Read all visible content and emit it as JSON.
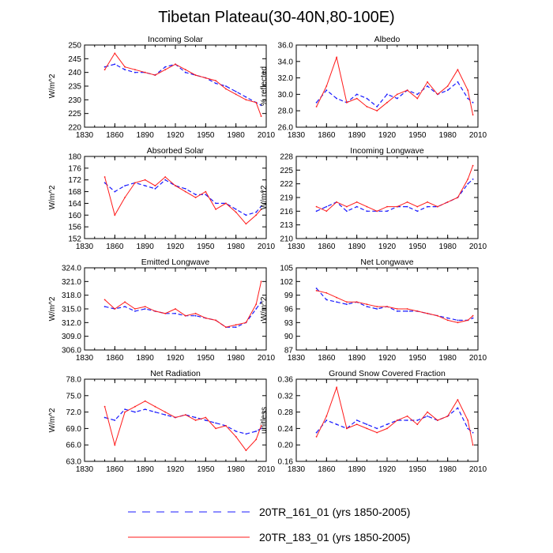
{
  "figure": {
    "title": "Tibetan Plateau(30-40N,80-100E)",
    "colors": {
      "series1": "#1a1aff",
      "series2": "#ff1a1a",
      "axis": "#000000"
    }
  },
  "chart_data": [
    {
      "type": "line",
      "title": "Incoming Solar",
      "xlabel": "",
      "ylabel": "W/m^2",
      "xlim": [
        1830,
        2010
      ],
      "xticks": [
        "1830",
        "1860",
        "1890",
        "1920",
        "1950",
        "1980",
        "2010"
      ],
      "ylim": [
        220,
        250
      ],
      "yticks": [
        "220",
        "225",
        "230",
        "235",
        "240",
        "245",
        "250"
      ],
      "x": [
        1850,
        1860,
        1870,
        1880,
        1890,
        1900,
        1910,
        1920,
        1930,
        1940,
        1950,
        1960,
        1970,
        1980,
        1990,
        2000,
        2005
      ],
      "series": [
        {
          "name": "20TR_161_01 (yrs 1850-2005)",
          "values": [
            242,
            243,
            241,
            240,
            240,
            239,
            242,
            243,
            240,
            239,
            238,
            236,
            235,
            233,
            231,
            229,
            228
          ]
        },
        {
          "name": "20TR_183_01 (yrs 1850-2005)",
          "values": [
            241,
            247,
            242,
            241,
            240,
            239,
            241,
            243,
            241,
            239,
            238,
            237,
            234,
            232,
            230,
            229,
            224
          ]
        }
      ]
    },
    {
      "type": "line",
      "title": "Albedo",
      "xlabel": "",
      "ylabel": "% reflected",
      "xlim": [
        1830,
        2010
      ],
      "xticks": [
        "1830",
        "1860",
        "1890",
        "1920",
        "1950",
        "1980",
        "2010"
      ],
      "ylim": [
        26,
        36
      ],
      "yticks": [
        "26.0",
        "28.0",
        "30.0",
        "32.0",
        "34.0",
        "36.0"
      ],
      "x": [
        1850,
        1860,
        1870,
        1880,
        1890,
        1900,
        1910,
        1920,
        1930,
        1940,
        1950,
        1960,
        1970,
        1980,
        1990,
        2000,
        2005
      ],
      "series": [
        {
          "name": "20TR_161_01 (yrs 1850-2005)",
          "values": [
            29.0,
            30.5,
            29.5,
            29.0,
            30.0,
            29.5,
            28.5,
            30.0,
            29.5,
            30.5,
            30.0,
            31.0,
            30.0,
            30.5,
            31.5,
            29.5,
            29.0
          ]
        },
        {
          "name": "20TR_183_01 (yrs 1850-2005)",
          "values": [
            28.5,
            31.0,
            34.5,
            29.0,
            29.5,
            28.5,
            28.0,
            29.0,
            30.0,
            30.5,
            29.5,
            31.5,
            30.0,
            31.0,
            33.0,
            30.5,
            27.5
          ]
        }
      ]
    },
    {
      "type": "line",
      "title": "Absorbed Solar",
      "xlabel": "",
      "ylabel": "W/m^2",
      "xlim": [
        1830,
        2010
      ],
      "xticks": [
        "1830",
        "1860",
        "1890",
        "1920",
        "1950",
        "1980",
        "2010"
      ],
      "ylim": [
        152,
        180
      ],
      "yticks": [
        "152",
        "156",
        "160",
        "164",
        "168",
        "172",
        "176",
        "180"
      ],
      "x": [
        1850,
        1860,
        1870,
        1880,
        1890,
        1900,
        1910,
        1920,
        1930,
        1940,
        1950,
        1960,
        1970,
        1980,
        1990,
        2000,
        2005
      ],
      "series": [
        {
          "name": "20TR_161_01 (yrs 1850-2005)",
          "values": [
            171,
            168,
            170,
            171,
            170,
            169,
            172,
            170,
            169,
            167,
            167,
            164,
            164,
            162,
            160,
            161,
            163
          ]
        },
        {
          "name": "20TR_183_01 (yrs 1850-2005)",
          "values": [
            173,
            160,
            166,
            171,
            172,
            170,
            173,
            170,
            168,
            166,
            168,
            162,
            164,
            161,
            157,
            160,
            162
          ]
        }
      ]
    },
    {
      "type": "line",
      "title": "Incoming Longwave",
      "xlabel": "",
      "ylabel": "W/m^2",
      "xlim": [
        1830,
        2010
      ],
      "xticks": [
        "1830",
        "1860",
        "1890",
        "1920",
        "1950",
        "1980",
        "2010"
      ],
      "ylim": [
        210,
        228
      ],
      "yticks": [
        "210",
        "213",
        "216",
        "219",
        "222",
        "225",
        "228"
      ],
      "x": [
        1850,
        1860,
        1870,
        1880,
        1890,
        1900,
        1910,
        1920,
        1930,
        1940,
        1950,
        1960,
        1970,
        1980,
        1990,
        2000,
        2005
      ],
      "series": [
        {
          "name": "20TR_161_01 (yrs 1850-2005)",
          "values": [
            216,
            217,
            218,
            216,
            217,
            216,
            216,
            216,
            217,
            217,
            216,
            217,
            217,
            218,
            219,
            222,
            223
          ]
        },
        {
          "name": "20TR_183_01 (yrs 1850-2005)",
          "values": [
            217,
            216,
            218,
            217,
            218,
            217,
            216,
            217,
            217,
            218,
            217,
            218,
            217,
            218,
            219,
            223,
            226
          ]
        }
      ]
    },
    {
      "type": "line",
      "title": "Emitted Longwave",
      "xlabel": "",
      "ylabel": "W/m^2",
      "xlim": [
        1830,
        2010
      ],
      "xticks": [
        "1830",
        "1860",
        "1890",
        "1920",
        "1950",
        "1980",
        "2010"
      ],
      "ylim": [
        306,
        324
      ],
      "yticks": [
        "306.0",
        "309.0",
        "312.0",
        "315.0",
        "318.0",
        "321.0",
        "324.0"
      ],
      "x": [
        1850,
        1860,
        1870,
        1880,
        1890,
        1900,
        1910,
        1920,
        1930,
        1940,
        1950,
        1960,
        1970,
        1980,
        1990,
        2000,
        2005
      ],
      "series": [
        {
          "name": "20TR_161_01 (yrs 1850-2005)",
          "values": [
            315.5,
            315.0,
            315.5,
            314.5,
            315.0,
            314.5,
            314.0,
            314.0,
            313.5,
            313.5,
            313.0,
            312.5,
            311.0,
            311.0,
            312.0,
            315.0,
            316.5
          ]
        },
        {
          "name": "20TR_183_01 (yrs 1850-2005)",
          "values": [
            317.0,
            315.0,
            316.5,
            315.0,
            315.5,
            314.5,
            314.0,
            315.0,
            313.5,
            314.0,
            313.0,
            312.5,
            311.0,
            311.5,
            312.0,
            316.0,
            321.0
          ]
        }
      ]
    },
    {
      "type": "line",
      "title": "Net Longwave",
      "xlabel": "",
      "ylabel": "W/m^2",
      "xlim": [
        1830,
        2010
      ],
      "xticks": [
        "1830",
        "1860",
        "1890",
        "1920",
        "1950",
        "1980",
        "2010"
      ],
      "ylim": [
        87,
        105
      ],
      "yticks": [
        "87",
        "90",
        "93",
        "96",
        "99",
        "102",
        "105"
      ],
      "x": [
        1850,
        1860,
        1870,
        1880,
        1890,
        1900,
        1910,
        1920,
        1930,
        1940,
        1950,
        1960,
        1970,
        1980,
        1990,
        2000,
        2005
      ],
      "series": [
        {
          "name": "20TR_161_01 (yrs 1850-2005)",
          "values": [
            100.5,
            98.0,
            97.5,
            97.0,
            97.5,
            96.5,
            96.0,
            96.5,
            95.5,
            95.5,
            95.5,
            95.0,
            94.5,
            94.0,
            93.5,
            93.5,
            94.0
          ]
        },
        {
          "name": "20TR_183_01 (yrs 1850-2005)",
          "values": [
            100.0,
            99.5,
            98.5,
            97.5,
            97.5,
            97.0,
            96.5,
            96.5,
            96.0,
            96.0,
            95.5,
            95.0,
            94.5,
            93.5,
            93.0,
            93.5,
            94.5
          ]
        }
      ]
    },
    {
      "type": "line",
      "title": "Net Radiation",
      "xlabel": "",
      "ylabel": "W/m^2",
      "xlim": [
        1830,
        2010
      ],
      "xticks": [
        "1830",
        "1860",
        "1890",
        "1920",
        "1950",
        "1980",
        "2010"
      ],
      "ylim": [
        63,
        78
      ],
      "yticks": [
        "63.0",
        "66.0",
        "69.0",
        "72.0",
        "75.0",
        "78.0"
      ],
      "x": [
        1850,
        1860,
        1870,
        1880,
        1890,
        1900,
        1910,
        1920,
        1930,
        1940,
        1950,
        1960,
        1970,
        1980,
        1990,
        2000,
        2005
      ],
      "series": [
        {
          "name": "20TR_161_01 (yrs 1850-2005)",
          "values": [
            71.0,
            70.5,
            72.5,
            72.0,
            72.5,
            72.0,
            71.5,
            71.0,
            71.5,
            71.0,
            70.5,
            70.0,
            69.5,
            68.5,
            68.0,
            68.5,
            69.0
          ]
        },
        {
          "name": "20TR_183_01 (yrs 1850-2005)",
          "values": [
            73.0,
            66.0,
            72.0,
            73.0,
            74.0,
            73.0,
            72.0,
            71.0,
            71.5,
            70.5,
            71.0,
            69.0,
            69.5,
            67.5,
            65.0,
            67.0,
            69.5
          ]
        }
      ]
    },
    {
      "type": "line",
      "title": "Ground Snow Covered Fraction",
      "xlabel": "",
      "ylabel": "unitless",
      "xlim": [
        1830,
        2010
      ],
      "xticks": [
        "1830",
        "1860",
        "1890",
        "1920",
        "1950",
        "1980",
        "2010"
      ],
      "ylim": [
        0.16,
        0.36
      ],
      "yticks": [
        "0.16",
        "0.20",
        "0.24",
        "0.28",
        "0.32",
        "0.36"
      ],
      "x": [
        1850,
        1860,
        1870,
        1880,
        1890,
        1900,
        1910,
        1920,
        1930,
        1940,
        1950,
        1960,
        1970,
        1980,
        1990,
        2000,
        2005
      ],
      "series": [
        {
          "name": "20TR_161_01 (yrs 1850-2005)",
          "values": [
            0.23,
            0.26,
            0.25,
            0.24,
            0.26,
            0.25,
            0.24,
            0.25,
            0.26,
            0.26,
            0.26,
            0.27,
            0.26,
            0.27,
            0.29,
            0.24,
            0.23
          ]
        },
        {
          "name": "20TR_183_01 (yrs 1850-2005)",
          "values": [
            0.22,
            0.27,
            0.34,
            0.24,
            0.25,
            0.24,
            0.23,
            0.24,
            0.26,
            0.27,
            0.25,
            0.28,
            0.26,
            0.27,
            0.31,
            0.26,
            0.2
          ]
        }
      ]
    }
  ],
  "legend": [
    {
      "label": "20TR_161_01 (yrs 1850-2005)",
      "style": "dashed",
      "color": "#1a1aff"
    },
    {
      "label": "20TR_183_01 (yrs 1850-2005)",
      "style": "solid",
      "color": "#ff1a1a"
    }
  ]
}
